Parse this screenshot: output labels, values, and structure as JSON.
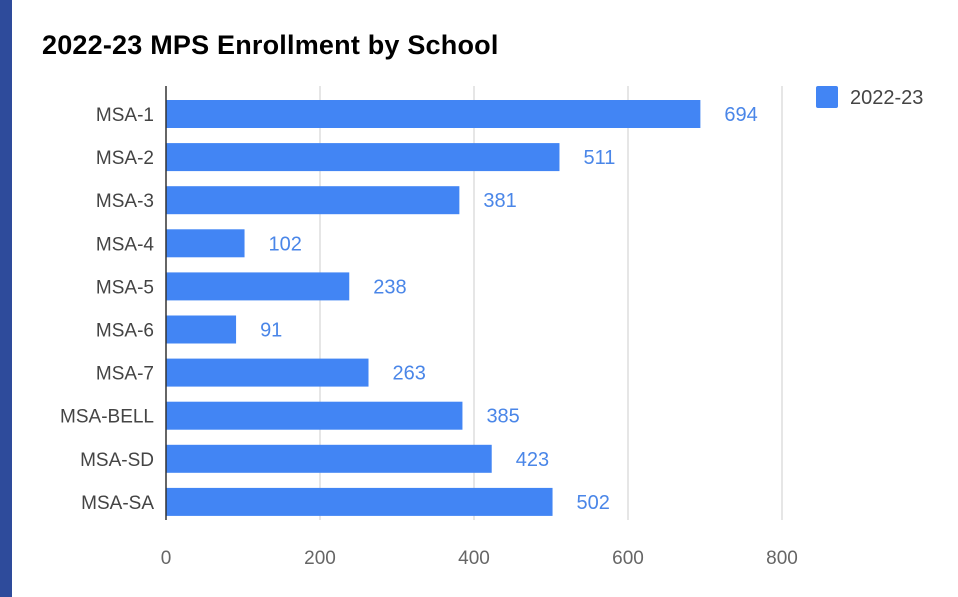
{
  "chart_data": {
    "type": "bar",
    "orientation": "horizontal",
    "title": "2022-23 MPS Enrollment by School",
    "categories": [
      "MSA-1",
      "MSA-2",
      "MSA-3",
      "MSA-4",
      "MSA-5",
      "MSA-6",
      "MSA-7",
      "MSA-BELL",
      "MSA-SD",
      "MSA-SA"
    ],
    "series": [
      {
        "name": "2022-23",
        "values": [
          694,
          511,
          381,
          102,
          238,
          91,
          263,
          385,
          423,
          502
        ]
      }
    ],
    "xlim": [
      0,
      800
    ],
    "xticks": [
      0,
      200,
      400,
      600,
      800
    ],
    "xlabel": "",
    "ylabel": "",
    "grid": "vertical",
    "legend_position": "top-right",
    "data_labels": true
  },
  "colors": {
    "bar": "#4285f4",
    "data_label": "#4a86e8",
    "gridline": "#cccccc",
    "axis": "#333333",
    "frame": "#2e4b9b"
  }
}
